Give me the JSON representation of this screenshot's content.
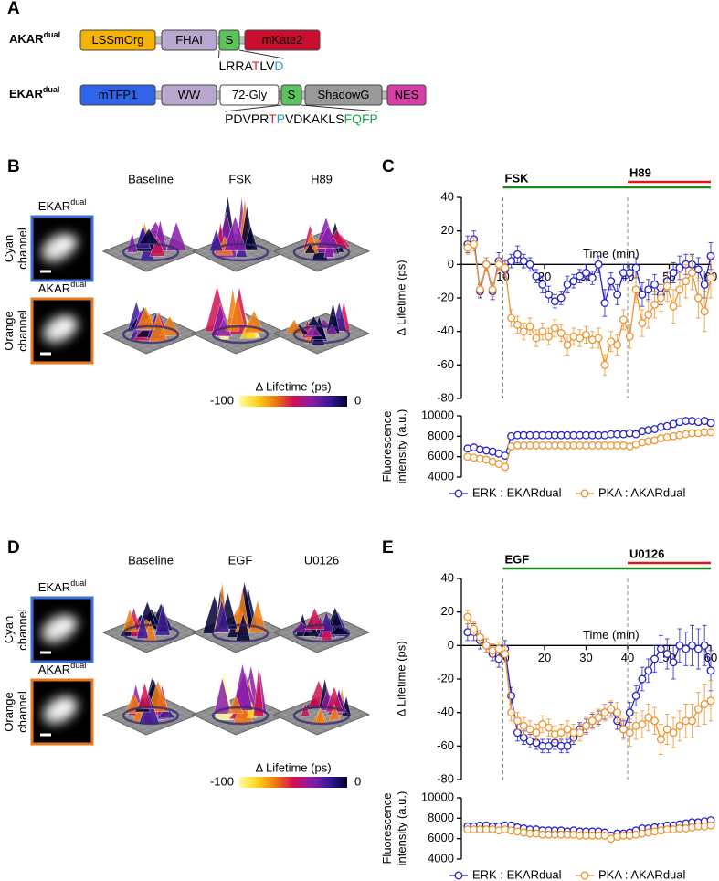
{
  "panel_labels": [
    "A",
    "B",
    "C",
    "D",
    "E"
  ],
  "panel_a": {
    "constructs": [
      {
        "name": {
          "text": "AKAR",
          "sup": "dual"
        },
        "domains": [
          {
            "label": "LSSmOrg",
            "color": "#f5b400"
          },
          {
            "label": "FHAI",
            "color": "#b8a6cf"
          },
          {
            "label": "S",
            "color": "#5cc25c"
          },
          {
            "label": "mKate2",
            "color": "#c8102e"
          }
        ],
        "sequence": [
          {
            "text": "LRRA"
          },
          {
            "text": "T",
            "color": "#e0201b"
          },
          {
            "text": "LV"
          },
          {
            "text": "D",
            "color": "#1f9fd8"
          }
        ]
      },
      {
        "name": {
          "text": "EKAR",
          "sup": "dual"
        },
        "domains": [
          {
            "label": "mTFP1",
            "color": "#2f63e8"
          },
          {
            "label": "WW",
            "color": "#b8a6cf"
          },
          {
            "label": "72-Gly",
            "color": "#ffffff"
          },
          {
            "label": "S",
            "color": "#5cc25c"
          },
          {
            "label": "ShadowG",
            "color": "#9a9a9a"
          },
          {
            "label": "NES",
            "color": "#d53fa6"
          }
        ],
        "sequence": [
          {
            "text": "PDVPR"
          },
          {
            "text": "T",
            "color": "#e0201b"
          },
          {
            "text": "P",
            "color": "#1f9fd8"
          },
          {
            "text": "VDKAKLS"
          },
          {
            "text": "FQFP",
            "color": "#1aa34a"
          }
        ]
      }
    ]
  },
  "panel_b": {
    "columns": [
      "Baseline",
      "FSK",
      "H89"
    ],
    "rows": [
      {
        "channel": [
          "Cyan",
          "channel"
        ],
        "sensor": {
          "text": "EKAR",
          "sup": "dual"
        },
        "border": "#3a6fd8"
      },
      {
        "channel": [
          "Orange",
          "channel"
        ],
        "sensor": {
          "text": "AKAR",
          "sup": "dual"
        },
        "border": "#e8781e"
      }
    ],
    "colorbar": {
      "label": "Δ Lifetime (ps)",
      "ticks": [
        -100,
        0
      ],
      "colors": [
        "#ffffa0",
        "#ffd21a",
        "#f07a10",
        "#d01050",
        "#8a1ca8",
        "#3a1a9a",
        "#000033"
      ]
    }
  },
  "panel_d": {
    "columns": [
      "Baseline",
      "EGF",
      "U0126"
    ],
    "rows": [
      {
        "channel": [
          "Cyan",
          "channel"
        ],
        "sensor": {
          "text": "EKAR",
          "sup": "dual"
        },
        "border": "#3a6fd8"
      },
      {
        "channel": [
          "Orange",
          "channel"
        ],
        "sensor": {
          "text": "AKAR",
          "sup": "dual"
        },
        "border": "#e8781e"
      }
    ],
    "colorbar": {
      "label": "Δ Lifetime (ps)",
      "ticks": [
        -100,
        0
      ],
      "colors": [
        "#ffffa0",
        "#ffd21a",
        "#f07a10",
        "#d01050",
        "#8a1ca8",
        "#3a1a9a",
        "#000033"
      ]
    }
  },
  "chart_data": [
    {
      "type": "line",
      "ylabel": "Δ Lifetime (ps)",
      "xlabel": "Time (min)",
      "xlim": [
        0,
        60
      ],
      "xticks": [
        10,
        20,
        30,
        40,
        50,
        60
      ],
      "ylim": [
        -80,
        40
      ],
      "yticks": [
        -80,
        -60,
        -40,
        -20,
        0,
        20,
        40
      ],
      "treatments": [
        {
          "label": "FSK",
          "start": 10,
          "end": 60,
          "color": "#1a8a1a"
        },
        {
          "label": "H89",
          "start": 40,
          "end": 60,
          "color": "#e01818"
        }
      ],
      "x": [
        1.5,
        3,
        4.5,
        6,
        7.5,
        9,
        10.5,
        12,
        13.5,
        15,
        16.5,
        18,
        19.5,
        21,
        22.5,
        24,
        25.5,
        27,
        28.5,
        30,
        31.5,
        33,
        34.5,
        36,
        37.5,
        39,
        40.5,
        42,
        43.5,
        45,
        46.5,
        48,
        49.5,
        51,
        52.5,
        54,
        55.5,
        57,
        58.5,
        60
      ],
      "series": [
        {
          "color": "#2222c8",
          "values": [
            12,
            15,
            -16,
            0,
            -16,
            2,
            -3,
            2,
            6,
            2,
            0,
            -7,
            -12,
            -18,
            -22,
            -20,
            -12,
            -10,
            -7,
            -5,
            -8,
            0,
            -23,
            -10,
            -18,
            -5,
            -5,
            -2,
            -18,
            -15,
            -12,
            -18,
            -10,
            -5,
            -2,
            0,
            0,
            -3,
            -12,
            5
          ],
          "errors": [
            5,
            5,
            4,
            4,
            5,
            5,
            5,
            4,
            5,
            4,
            4,
            4,
            5,
            5,
            4,
            4,
            5,
            4,
            4,
            5,
            4,
            5,
            8,
            5,
            6,
            5,
            5,
            6,
            7,
            6,
            6,
            6,
            6,
            6,
            7,
            6,
            6,
            7,
            8,
            8
          ]
        },
        {
          "color": "#f0922a",
          "values": [
            10,
            12,
            -15,
            0,
            -15,
            0,
            -2,
            -32,
            -36,
            -40,
            -37,
            -44,
            -40,
            -43,
            -38,
            -41,
            -48,
            -43,
            -44,
            -42,
            -45,
            -44,
            -60,
            -46,
            -48,
            -33,
            -43,
            -15,
            -35,
            -30,
            -24,
            -20,
            -13,
            -25,
            -15,
            -10,
            -5,
            -20,
            -28,
            -8
          ],
          "errors": [
            4,
            4,
            4,
            4,
            4,
            4,
            5,
            5,
            5,
            5,
            5,
            5,
            5,
            5,
            5,
            5,
            6,
            5,
            5,
            5,
            5,
            6,
            6,
            6,
            6,
            6,
            7,
            8,
            8,
            8,
            8,
            8,
            9,
            10,
            10,
            10,
            10,
            12,
            12,
            12
          ]
        }
      ]
    },
    {
      "type": "line",
      "ylabel": [
        "Fluorescence",
        "intensity (a.u.)"
      ],
      "xlim": [
        0,
        60
      ],
      "ylim": [
        4000,
        10000
      ],
      "yticks": [
        4000,
        6000,
        8000,
        10000
      ],
      "x": [
        1.5,
        3,
        4.5,
        6,
        7.5,
        9,
        10.5,
        12,
        13.5,
        15,
        16.5,
        18,
        19.5,
        21,
        22.5,
        24,
        25.5,
        27,
        28.5,
        30,
        31.5,
        33,
        34.5,
        36,
        37.5,
        39,
        40.5,
        42,
        43.5,
        45,
        46.5,
        48,
        49.5,
        51,
        52.5,
        54,
        55.5,
        57,
        58.5,
        60
      ],
      "series": [
        {
          "name": "ERK : EKARdual",
          "color": "#2222c8",
          "values": [
            6800,
            6900,
            6700,
            6600,
            6500,
            6300,
            6100,
            8000,
            8100,
            8100,
            8100,
            8100,
            8100,
            8100,
            8100,
            8100,
            8100,
            8100,
            8100,
            8100,
            8100,
            8100,
            8100,
            8200,
            8200,
            8200,
            8300,
            8200,
            8500,
            8600,
            8700,
            8900,
            9000,
            9200,
            9400,
            9500,
            9500,
            9400,
            9500,
            9300
          ]
        },
        {
          "name": "PKA : AKARdual",
          "color": "#f0922a",
          "values": [
            6000,
            5900,
            5800,
            5700,
            5500,
            5300,
            5000,
            7000,
            7100,
            7100,
            7100,
            7100,
            7100,
            7100,
            7100,
            7100,
            7100,
            7100,
            7100,
            7100,
            7100,
            7100,
            7100,
            7100,
            7100,
            7100,
            7000,
            7200,
            7400,
            7500,
            7600,
            7800,
            7900,
            8000,
            8100,
            8200,
            8300,
            8300,
            8400,
            8400
          ]
        }
      ]
    },
    {
      "type": "line",
      "ylabel": "Δ Lifetime (ps)",
      "xlabel": "Time (min)",
      "xlim": [
        0,
        60
      ],
      "xticks": [
        10,
        20,
        30,
        40,
        50,
        60
      ],
      "ylim": [
        -80,
        40
      ],
      "yticks": [
        -80,
        -60,
        -40,
        -20,
        0,
        20,
        40
      ],
      "treatments": [
        {
          "label": "EGF",
          "start": 10,
          "end": 60,
          "color": "#1a8a1a"
        },
        {
          "label": "U0126",
          "start": 40,
          "end": 60,
          "color": "#e01818"
        }
      ],
      "x": [
        1.5,
        3,
        4.5,
        6,
        7.5,
        9,
        10.5,
        12,
        13.5,
        15,
        16.5,
        18,
        19.5,
        21,
        22.5,
        24,
        25.5,
        27,
        28.5,
        30,
        31.5,
        33,
        34.5,
        36,
        37.5,
        39,
        40.5,
        42,
        43.5,
        45,
        46.5,
        48,
        49.5,
        51,
        52.5,
        54,
        55.5,
        57,
        58.5,
        60
      ],
      "series": [
        {
          "color": "#2222c8",
          "values": [
            8,
            8,
            3,
            0,
            -5,
            -8,
            -2,
            -30,
            -52,
            -55,
            -57,
            -58,
            -60,
            -60,
            -58,
            -60,
            -60,
            -55,
            -50,
            -48,
            -45,
            -43,
            -40,
            -38,
            -45,
            -50,
            -40,
            -30,
            -20,
            -15,
            -8,
            -2,
            -5,
            -10,
            0,
            -2,
            0,
            -2,
            0,
            -15
          ],
          "errors": [
            5,
            5,
            5,
            4,
            4,
            5,
            5,
            5,
            5,
            4,
            4,
            4,
            4,
            4,
            4,
            4,
            4,
            4,
            4,
            4,
            4,
            4,
            4,
            4,
            5,
            5,
            6,
            6,
            7,
            7,
            8,
            8,
            9,
            10,
            10,
            10,
            12,
            12,
            12,
            12
          ]
        },
        {
          "color": "#f0922a",
          "values": [
            17,
            10,
            5,
            0,
            -3,
            -2,
            -5,
            -40,
            -45,
            -48,
            -50,
            -52,
            -47,
            -49,
            -53,
            -52,
            -50,
            -52,
            -52,
            -48,
            -45,
            -43,
            -40,
            -38,
            -40,
            -50,
            -52,
            -48,
            -47,
            -43,
            -45,
            -56,
            -50,
            -52,
            -48,
            -45,
            -45,
            -38,
            -35,
            -33
          ],
          "errors": [
            4,
            4,
            4,
            4,
            4,
            4,
            5,
            5,
            5,
            5,
            5,
            5,
            5,
            5,
            5,
            5,
            5,
            5,
            5,
            5,
            5,
            5,
            5,
            5,
            6,
            6,
            8,
            8,
            8,
            8,
            8,
            9,
            9,
            9,
            9,
            10,
            10,
            10,
            12,
            12
          ]
        }
      ]
    },
    {
      "type": "line",
      "ylabel": [
        "Fluorescence",
        "intensity (a.u.)"
      ],
      "xlim": [
        0,
        60
      ],
      "ylim": [
        4000,
        10000
      ],
      "yticks": [
        4000,
        6000,
        8000,
        10000
      ],
      "x": [
        1.5,
        3,
        4.5,
        6,
        7.5,
        9,
        10.5,
        12,
        13.5,
        15,
        16.5,
        18,
        19.5,
        21,
        22.5,
        24,
        25.5,
        27,
        28.5,
        30,
        31.5,
        33,
        34.5,
        36,
        37.5,
        39,
        40.5,
        42,
        43.5,
        45,
        46.5,
        48,
        49.5,
        51,
        52.5,
        54,
        55.5,
        57,
        58.5,
        60
      ],
      "series": [
        {
          "name": "ERK : EKARdual",
          "color": "#2222c8",
          "values": [
            7200,
            7200,
            7300,
            7300,
            7200,
            7200,
            7300,
            7300,
            7100,
            7000,
            6900,
            6900,
            6800,
            6800,
            6800,
            6800,
            6700,
            6800,
            6700,
            6700,
            6700,
            6700,
            6600,
            6300,
            6500,
            6500,
            6600,
            6800,
            7000,
            7000,
            7100,
            7200,
            7300,
            7300,
            7400,
            7500,
            7600,
            7600,
            7700,
            7800
          ]
        },
        {
          "name": "PKA : AKARdual",
          "color": "#f0922a",
          "values": [
            6900,
            6900,
            6900,
            6900,
            6900,
            6800,
            6900,
            6800,
            6700,
            6600,
            6500,
            6500,
            6400,
            6400,
            6400,
            6400,
            6400,
            6400,
            6300,
            6300,
            6300,
            6300,
            6300,
            6000,
            6200,
            6300,
            6300,
            6400,
            6500,
            6600,
            6700,
            6800,
            6900,
            6900,
            7000,
            7000,
            7100,
            7200,
            7200,
            7300
          ]
        }
      ]
    }
  ]
}
